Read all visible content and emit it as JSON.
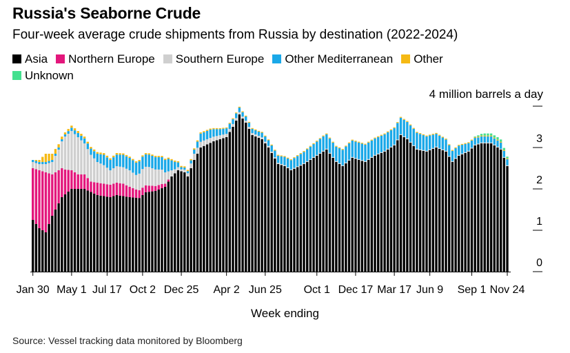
{
  "chart_data": {
    "type": "bar",
    "stacked": true,
    "title": "Russia's Seaborne Crude",
    "subtitle": "Four-week average crude shipments from Russia by destination (2022-2024)",
    "ylabel": "4 million barrels a day",
    "xlabel": "Week ending",
    "ylim": [
      0,
      4
    ],
    "yticks": [
      "0",
      "1",
      "2",
      "3"
    ],
    "legend_position": "top",
    "xticks": [
      "Jan 30",
      "May 1",
      "Jul 17",
      "Oct 2",
      "Dec 25",
      "Apr 2",
      "Jun 25",
      "Oct 1",
      "Dec 17",
      "Mar 17",
      "Jun 9",
      "Sep 1",
      "Nov 24"
    ],
    "xtick_index": [
      0,
      12,
      23,
      34,
      46,
      60,
      72,
      88,
      100,
      112,
      123,
      136,
      147
    ],
    "num_weeks": 148,
    "series": [
      {
        "name": "Asia",
        "color": "#000000",
        "knots": [
          [
            0,
            1.25
          ],
          [
            2,
            1.05
          ],
          [
            4,
            0.95
          ],
          [
            6,
            1.35
          ],
          [
            9,
            1.8
          ],
          [
            12,
            2.0
          ],
          [
            16,
            2.0
          ],
          [
            20,
            1.85
          ],
          [
            24,
            1.8
          ],
          [
            26,
            1.85
          ],
          [
            30,
            1.8
          ],
          [
            33,
            1.78
          ],
          [
            35,
            1.92
          ],
          [
            38,
            1.95
          ],
          [
            41,
            2.05
          ],
          [
            43,
            2.3
          ],
          [
            45,
            2.45
          ],
          [
            47,
            2.4
          ],
          [
            48,
            2.3
          ],
          [
            50,
            2.7
          ],
          [
            52,
            3.0
          ],
          [
            56,
            3.15
          ],
          [
            60,
            3.25
          ],
          [
            62,
            3.5
          ],
          [
            64,
            3.8
          ],
          [
            66,
            3.6
          ],
          [
            68,
            3.3
          ],
          [
            71,
            3.2
          ],
          [
            73,
            3.0
          ],
          [
            76,
            2.6
          ],
          [
            78,
            2.55
          ],
          [
            80,
            2.45
          ],
          [
            84,
            2.6
          ],
          [
            88,
            2.8
          ],
          [
            91,
            2.95
          ],
          [
            94,
            2.65
          ],
          [
            96,
            2.55
          ],
          [
            99,
            2.75
          ],
          [
            103,
            2.65
          ],
          [
            106,
            2.8
          ],
          [
            109,
            2.9
          ],
          [
            112,
            3.05
          ],
          [
            114,
            3.3
          ],
          [
            116,
            3.2
          ],
          [
            119,
            2.95
          ],
          [
            122,
            2.9
          ],
          [
            125,
            3.0
          ],
          [
            128,
            2.9
          ],
          [
            130,
            2.65
          ],
          [
            132,
            2.8
          ],
          [
            135,
            2.9
          ],
          [
            137,
            3.05
          ],
          [
            139,
            3.1
          ],
          [
            142,
            3.1
          ],
          [
            145,
            2.95
          ],
          [
            147,
            2.55
          ]
        ]
      },
      {
        "name": "Northern Europe",
        "color": "#e3177c",
        "knots": [
          [
            0,
            1.25
          ],
          [
            2,
            1.4
          ],
          [
            4,
            1.45
          ],
          [
            6,
            1.0
          ],
          [
            8,
            0.8
          ],
          [
            10,
            0.6
          ],
          [
            12,
            0.45
          ],
          [
            14,
            0.35
          ],
          [
            16,
            0.35
          ],
          [
            18,
            0.25
          ],
          [
            20,
            0.3
          ],
          [
            22,
            0.3
          ],
          [
            24,
            0.3
          ],
          [
            26,
            0.3
          ],
          [
            28,
            0.3
          ],
          [
            30,
            0.25
          ],
          [
            32,
            0.2
          ],
          [
            34,
            0.18
          ],
          [
            36,
            0.15
          ],
          [
            38,
            0.12
          ],
          [
            40,
            0.1
          ],
          [
            42,
            0.05
          ],
          [
            43,
            0.0
          ],
          [
            147,
            0.0
          ]
        ]
      },
      {
        "name": "Southern Europe",
        "color": "#cfcfcf",
        "knots": [
          [
            0,
            0.15
          ],
          [
            2,
            0.15
          ],
          [
            4,
            0.2
          ],
          [
            6,
            0.3
          ],
          [
            8,
            0.5
          ],
          [
            10,
            0.8
          ],
          [
            12,
            0.95
          ],
          [
            14,
            0.9
          ],
          [
            16,
            0.75
          ],
          [
            18,
            0.65
          ],
          [
            20,
            0.5
          ],
          [
            22,
            0.45
          ],
          [
            24,
            0.35
          ],
          [
            26,
            0.4
          ],
          [
            28,
            0.4
          ],
          [
            30,
            0.4
          ],
          [
            32,
            0.35
          ],
          [
            34,
            0.45
          ],
          [
            36,
            0.45
          ],
          [
            38,
            0.4
          ],
          [
            40,
            0.35
          ],
          [
            42,
            0.2
          ],
          [
            44,
            0.1
          ],
          [
            46,
            0.05
          ],
          [
            48,
            0.08
          ],
          [
            50,
            0.15
          ],
          [
            55,
            0.12
          ],
          [
            60,
            0.08
          ],
          [
            65,
            0.05
          ],
          [
            70,
            0.05
          ],
          [
            75,
            0.03
          ],
          [
            80,
            0.02
          ],
          [
            90,
            0.02
          ],
          [
            100,
            0.02
          ],
          [
            147,
            0.02
          ]
        ]
      },
      {
        "name": "Other Mediterranean",
        "color": "#1aa8e8",
        "knots": [
          [
            0,
            0.05
          ],
          [
            2,
            0.05
          ],
          [
            4,
            0.05
          ],
          [
            6,
            0.05
          ],
          [
            8,
            0.05
          ],
          [
            10,
            0.05
          ],
          [
            12,
            0.08
          ],
          [
            14,
            0.1
          ],
          [
            16,
            0.12
          ],
          [
            18,
            0.15
          ],
          [
            20,
            0.2
          ],
          [
            22,
            0.25
          ],
          [
            24,
            0.25
          ],
          [
            26,
            0.28
          ],
          [
            28,
            0.3
          ],
          [
            30,
            0.3
          ],
          [
            32,
            0.3
          ],
          [
            34,
            0.3
          ],
          [
            36,
            0.3
          ],
          [
            38,
            0.3
          ],
          [
            40,
            0.3
          ],
          [
            42,
            0.3
          ],
          [
            44,
            0.18
          ],
          [
            46,
            0.05
          ],
          [
            48,
            0.05
          ],
          [
            50,
            0.1
          ],
          [
            52,
            0.2
          ],
          [
            55,
            0.2
          ],
          [
            58,
            0.15
          ],
          [
            62,
            0.12
          ],
          [
            66,
            0.1
          ],
          [
            70,
            0.1
          ],
          [
            74,
            0.15
          ],
          [
            78,
            0.2
          ],
          [
            82,
            0.25
          ],
          [
            86,
            0.3
          ],
          [
            90,
            0.35
          ],
          [
            94,
            0.35
          ],
          [
            98,
            0.4
          ],
          [
            102,
            0.4
          ],
          [
            106,
            0.4
          ],
          [
            110,
            0.4
          ],
          [
            114,
            0.4
          ],
          [
            118,
            0.4
          ],
          [
            122,
            0.35
          ],
          [
            126,
            0.3
          ],
          [
            130,
            0.25
          ],
          [
            134,
            0.2
          ],
          [
            138,
            0.15
          ],
          [
            142,
            0.15
          ],
          [
            147,
            0.15
          ]
        ]
      },
      {
        "name": "Other",
        "color": "#f5b914",
        "knots": [
          [
            0,
            0.0
          ],
          [
            2,
            0.05
          ],
          [
            4,
            0.2
          ],
          [
            6,
            0.15
          ],
          [
            8,
            0.08
          ],
          [
            10,
            0.05
          ],
          [
            14,
            0.05
          ],
          [
            18,
            0.04
          ],
          [
            24,
            0.04
          ],
          [
            30,
            0.03
          ],
          [
            36,
            0.03
          ],
          [
            42,
            0.03
          ],
          [
            50,
            0.03
          ],
          [
            60,
            0.02
          ],
          [
            70,
            0.02
          ],
          [
            80,
            0.02
          ],
          [
            90,
            0.02
          ],
          [
            100,
            0.02
          ],
          [
            110,
            0.02
          ],
          [
            120,
            0.02
          ],
          [
            130,
            0.02
          ],
          [
            140,
            0.02
          ],
          [
            147,
            0.02
          ]
        ]
      },
      {
        "name": "Unknown",
        "color": "#44e08f",
        "knots": [
          [
            0,
            0.0
          ],
          [
            100,
            0.0
          ],
          [
            120,
            0.0
          ],
          [
            130,
            0.0
          ],
          [
            136,
            0.0
          ],
          [
            138,
            0.03
          ],
          [
            140,
            0.05
          ],
          [
            142,
            0.05
          ],
          [
            144,
            0.06
          ],
          [
            146,
            0.05
          ],
          [
            147,
            0.04
          ]
        ]
      }
    ]
  }
}
